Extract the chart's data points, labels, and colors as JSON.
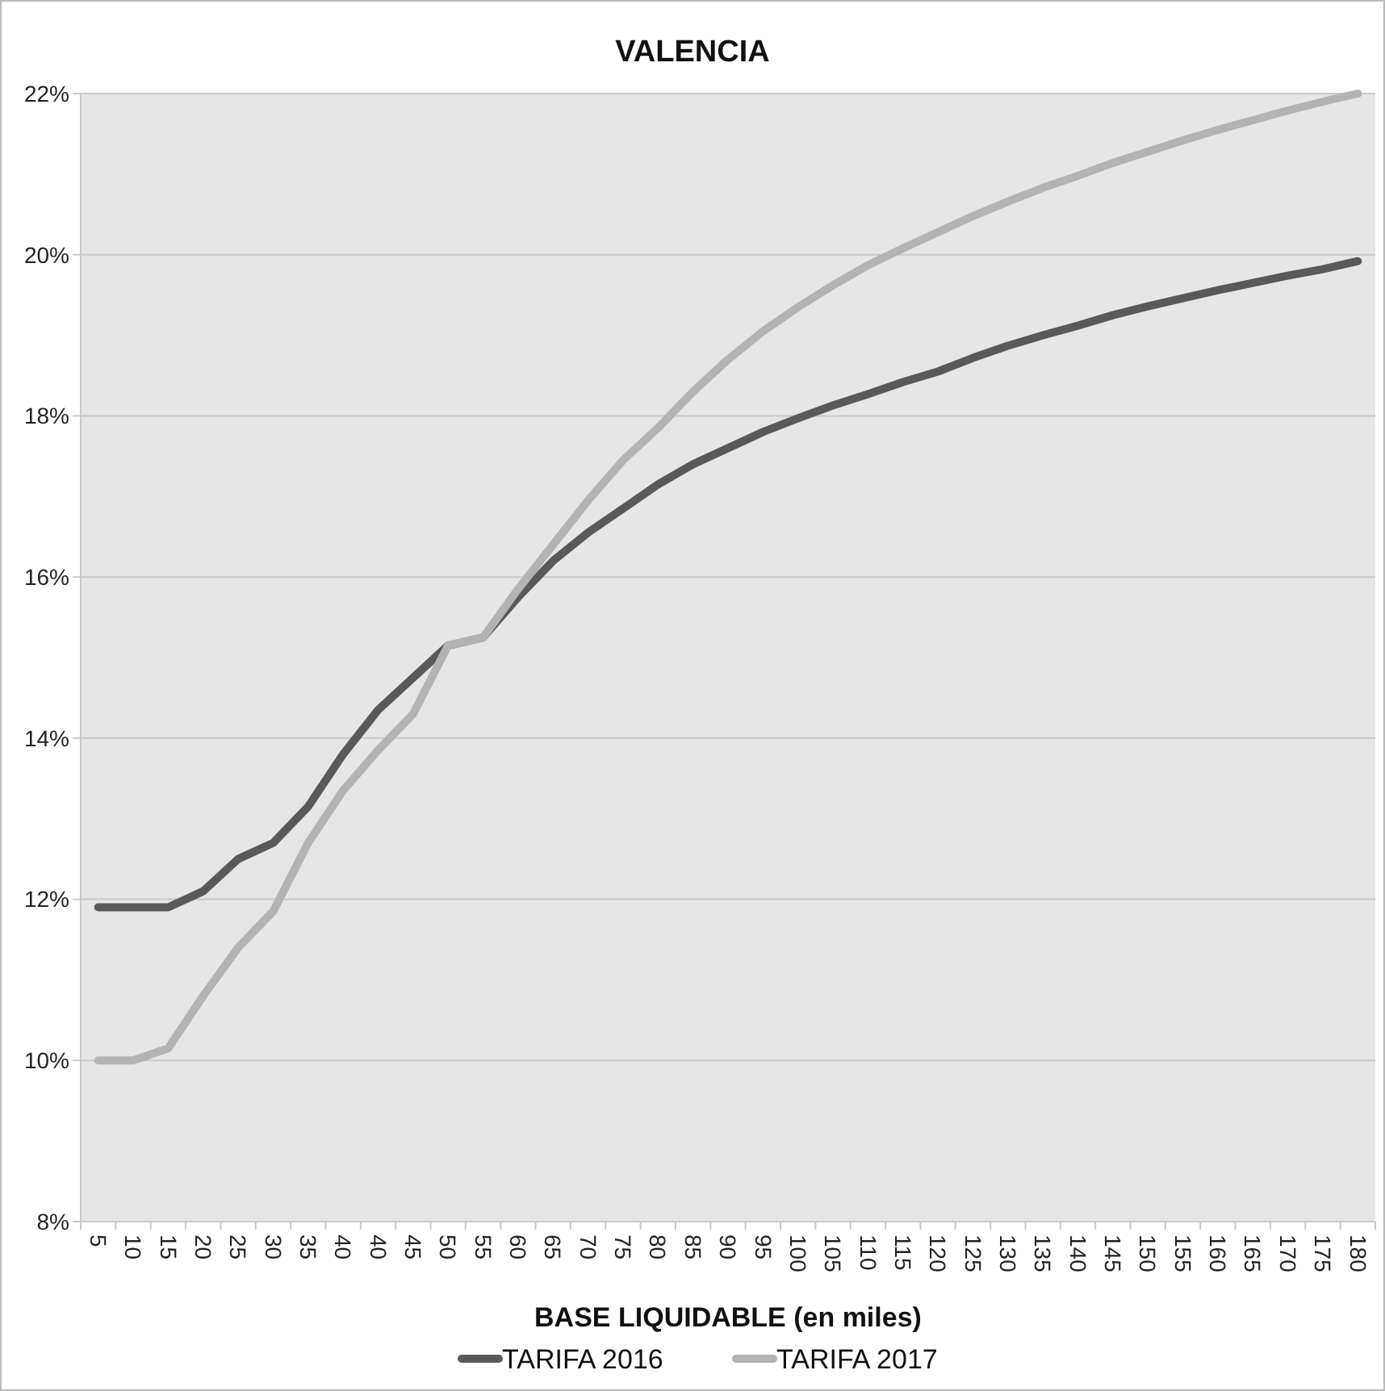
{
  "chart_data": {
    "type": "line",
    "title": "VALENCIA",
    "xlabel": "BASE LIQUIDABLE (en miles)",
    "categories": [
      "5",
      "10",
      "15",
      "20",
      "25",
      "30",
      "35",
      "40",
      "40",
      "45",
      "50",
      "55",
      "60",
      "65",
      "70",
      "75",
      "80",
      "85",
      "90",
      "95",
      "100",
      "105",
      "110",
      "115",
      "120",
      "125",
      "130",
      "135",
      "140",
      "145",
      "150",
      "155",
      "160",
      "165",
      "170",
      "175",
      "180"
    ],
    "series": [
      {
        "name": "TARIFA 2016",
        "color": "#595959",
        "values": [
          11.9,
          11.9,
          11.9,
          12.1,
          12.5,
          12.7,
          13.15,
          13.8,
          14.35,
          14.75,
          15.15,
          15.25,
          15.75,
          16.2,
          16.55,
          16.85,
          17.15,
          17.4,
          17.6,
          17.8,
          17.97,
          18.13,
          18.27,
          18.42,
          18.55,
          18.72,
          18.87,
          19.0,
          19.12,
          19.25,
          19.36,
          19.46,
          19.56,
          19.65,
          19.74,
          19.82,
          19.92
        ]
      },
      {
        "name": "TARIFA 2017",
        "color": "#b3b3b3",
        "values": [
          10.0,
          10.0,
          10.15,
          10.8,
          11.4,
          11.85,
          12.7,
          13.35,
          13.85,
          14.3,
          15.15,
          15.25,
          15.85,
          16.4,
          16.95,
          17.45,
          17.85,
          18.3,
          18.7,
          19.05,
          19.35,
          19.62,
          19.87,
          20.08,
          20.28,
          20.48,
          20.66,
          20.83,
          20.98,
          21.14,
          21.28,
          21.42,
          21.55,
          21.67,
          21.79,
          21.9,
          22.0
        ]
      }
    ],
    "ylim": [
      8,
      22
    ],
    "yticks": [
      {
        "value": 8,
        "label": "8%"
      },
      {
        "value": 10,
        "label": "10%"
      },
      {
        "value": 12,
        "label": "12%"
      },
      {
        "value": 14,
        "label": "14%"
      },
      {
        "value": 16,
        "label": "16%"
      },
      {
        "value": 18,
        "label": "18%"
      },
      {
        "value": 20,
        "label": "20%"
      },
      {
        "value": 22,
        "label": "22%"
      }
    ],
    "grid": "y",
    "legend": "bottom",
    "marker": "none",
    "line_style": "solid"
  }
}
